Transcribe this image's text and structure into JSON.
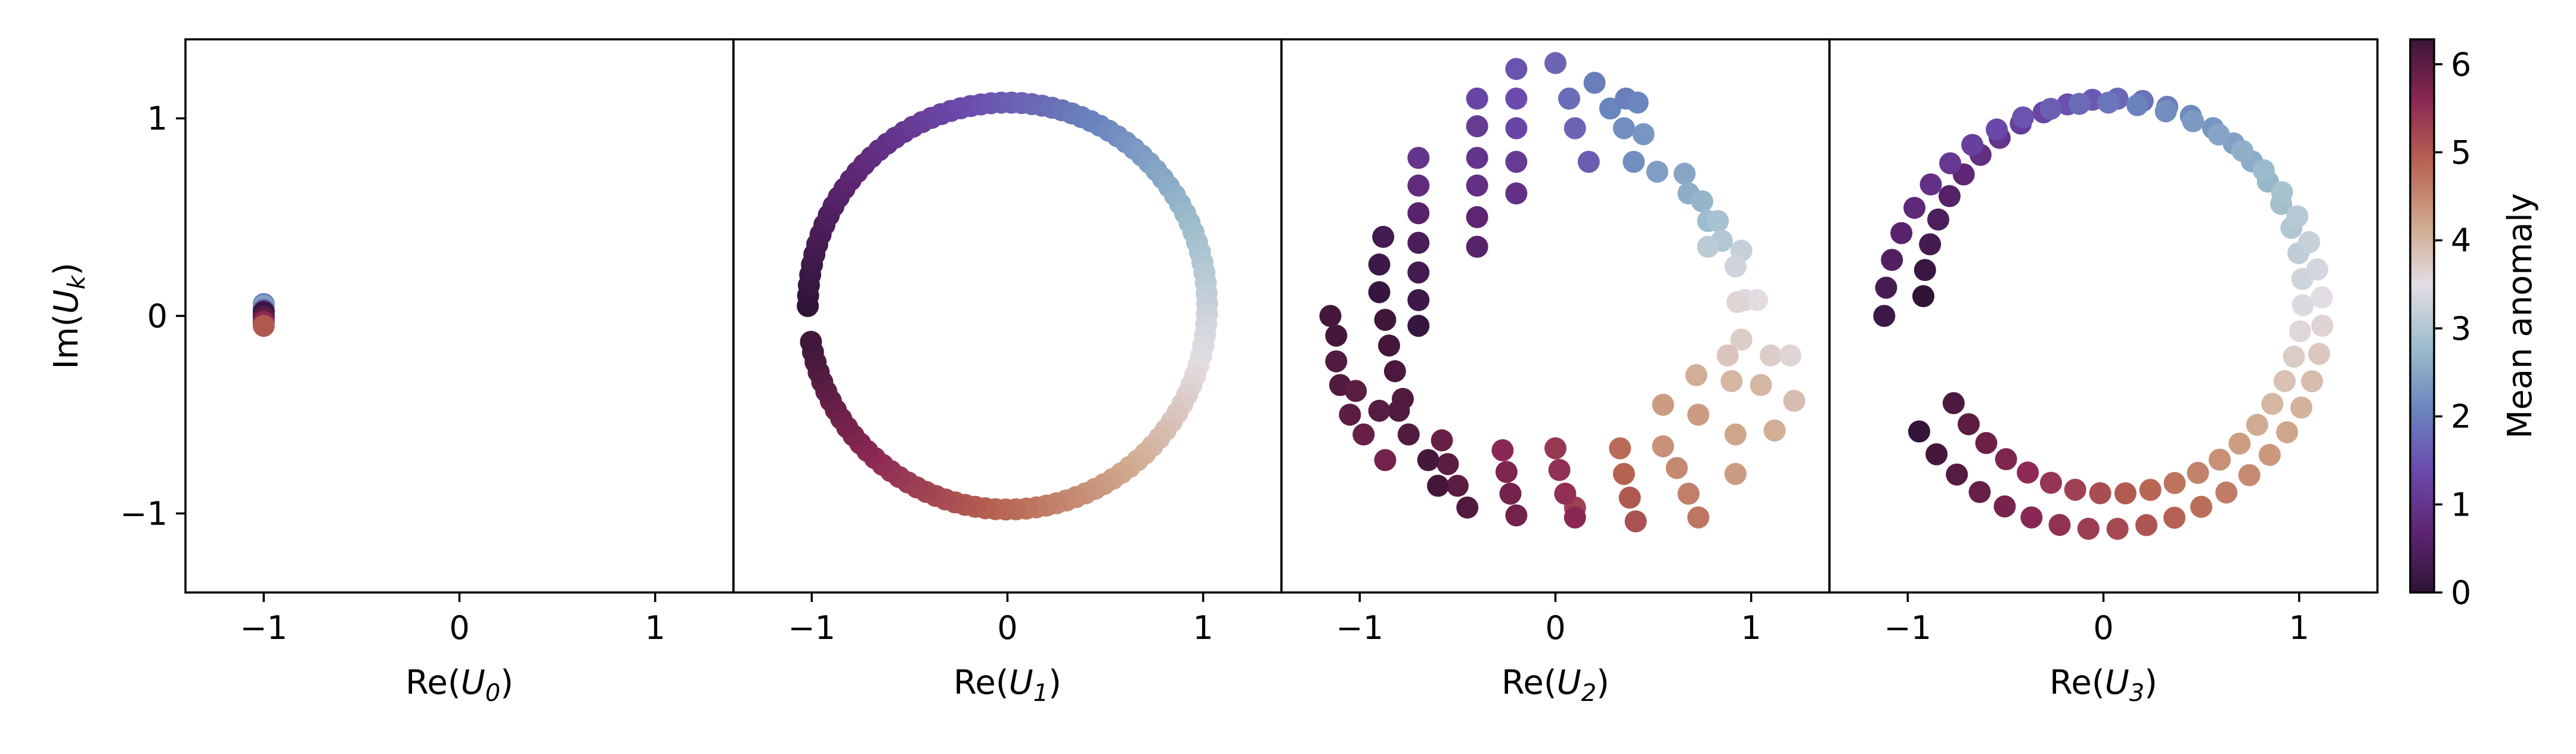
{
  "chart_data": {
    "type": "scatter",
    "colorbar": {
      "label": "Mean anomaly",
      "range": [
        0,
        6.283
      ],
      "ticks": [
        0,
        1,
        2,
        3,
        4,
        5,
        6
      ],
      "colormap": "twilight_shifted",
      "stops": [
        "#2f1436",
        "#5e2573",
        "#6b4bad",
        "#6a86be",
        "#9cbdcc",
        "#e2dde3",
        "#d0a78b",
        "#b76351",
        "#8c2854",
        "#3b1638"
      ]
    },
    "shared_ylabel": "Im(U_k)",
    "panels": [
      {
        "xlabel": "Re(U_0)",
        "xlim": [
          -1.4,
          1.4
        ],
        "ylim": [
          -1.4,
          1.4
        ],
        "xticks": [
          -1,
          0,
          1
        ],
        "yticks": [
          -1,
          0,
          1
        ],
        "points": [
          [
            -1.0,
            0.06,
            2.0
          ],
          [
            -1.0,
            0.05,
            2.4
          ],
          [
            -1.0,
            0.03,
            1.6
          ],
          [
            -1.0,
            0.02,
            0.1
          ],
          [
            -1.0,
            0.0,
            0.3
          ],
          [
            -1.0,
            -0.01,
            6.0
          ],
          [
            -1.0,
            -0.03,
            5.6
          ],
          [
            -1.0,
            -0.05,
            5.0
          ]
        ]
      },
      {
        "xlabel": "Re(U_1)",
        "xlim": [
          -1.4,
          1.4
        ],
        "ylim": [
          -1.4,
          1.4
        ],
        "xticks": [
          -1,
          0,
          1
        ],
        "yticks": [
          -1,
          0,
          1
        ],
        "shape": "circle",
        "cx": 0.0,
        "cy": 0.05,
        "rx": 1.02,
        "ry": 1.03,
        "points": []
      },
      {
        "xlabel": "Re(U_2)",
        "xlim": [
          -1.4,
          1.4
        ],
        "ylim": [
          -1.4,
          1.4
        ],
        "xticks": [
          -1,
          0,
          1
        ],
        "yticks": [
          -1,
          0,
          1
        ],
        "points": [
          [
            -0.7,
            0.8,
            1.0
          ],
          [
            -0.7,
            0.66,
            0.8
          ],
          [
            -0.7,
            0.52,
            0.6
          ],
          [
            -0.7,
            0.37,
            0.4
          ],
          [
            -0.7,
            0.22,
            0.3
          ],
          [
            -0.7,
            0.08,
            0.2
          ],
          [
            -0.7,
            -0.05,
            0.1
          ],
          [
            -0.4,
            1.1,
            1.3
          ],
          [
            -0.4,
            0.96,
            1.1
          ],
          [
            -0.4,
            0.8,
            1.0
          ],
          [
            -0.4,
            0.66,
            0.9
          ],
          [
            -0.4,
            0.5,
            0.7
          ],
          [
            -0.4,
            0.35,
            0.6
          ],
          [
            -0.2,
            1.25,
            1.5
          ],
          [
            -0.2,
            1.1,
            1.4
          ],
          [
            -0.2,
            0.95,
            1.3
          ],
          [
            -0.2,
            0.78,
            1.1
          ],
          [
            -0.2,
            0.62,
            0.9
          ],
          [
            0.0,
            1.28,
            1.7
          ],
          [
            0.07,
            1.1,
            1.8
          ],
          [
            0.1,
            0.95,
            1.7
          ],
          [
            0.17,
            0.78,
            1.6
          ],
          [
            0.2,
            1.18,
            2.0
          ],
          [
            0.28,
            1.05,
            2.1
          ],
          [
            0.35,
            0.95,
            2.2
          ],
          [
            0.4,
            0.78,
            2.2
          ],
          [
            0.36,
            1.1,
            2.0
          ],
          [
            0.42,
            1.08,
            2.1
          ],
          [
            0.45,
            0.92,
            2.3
          ],
          [
            0.52,
            0.73,
            2.4
          ],
          [
            0.66,
            0.72,
            2.5
          ],
          [
            0.68,
            0.62,
            2.6
          ],
          [
            0.75,
            0.58,
            2.7
          ],
          [
            0.78,
            0.48,
            2.8
          ],
          [
            0.83,
            0.48,
            2.9
          ],
          [
            0.85,
            0.38,
            3.0
          ],
          [
            0.78,
            0.35,
            3.1
          ],
          [
            0.95,
            0.33,
            3.2
          ],
          [
            0.92,
            0.25,
            3.3
          ],
          [
            0.97,
            0.08,
            3.4
          ],
          [
            1.03,
            0.08,
            3.5
          ],
          [
            0.93,
            0.07,
            3.6
          ],
          [
            0.95,
            -0.12,
            3.7
          ],
          [
            0.88,
            -0.2,
            3.8
          ],
          [
            1.1,
            -0.2,
            3.7
          ],
          [
            1.2,
            -0.2,
            3.6
          ],
          [
            0.72,
            -0.3,
            4.1
          ],
          [
            0.9,
            -0.33,
            4.0
          ],
          [
            1.05,
            -0.35,
            4.0
          ],
          [
            1.22,
            -0.43,
            3.9
          ],
          [
            0.55,
            -0.45,
            4.3
          ],
          [
            0.73,
            -0.5,
            4.3
          ],
          [
            0.92,
            -0.6,
            4.2
          ],
          [
            1.12,
            -0.58,
            4.1
          ],
          [
            0.55,
            -0.66,
            4.4
          ],
          [
            0.62,
            -0.77,
            4.5
          ],
          [
            0.68,
            -0.9,
            4.6
          ],
          [
            0.73,
            -1.02,
            4.7
          ],
          [
            0.92,
            -0.8,
            4.3
          ],
          [
            0.33,
            -0.67,
            4.8
          ],
          [
            0.35,
            -0.8,
            4.9
          ],
          [
            0.38,
            -0.92,
            5.0
          ],
          [
            0.41,
            -1.04,
            5.1
          ],
          [
            0.1,
            -0.97,
            5.3
          ],
          [
            0.0,
            -0.67,
            5.4
          ],
          [
            0.02,
            -0.78,
            5.5
          ],
          [
            0.05,
            -0.9,
            5.5
          ],
          [
            0.1,
            -1.02,
            5.6
          ],
          [
            -0.27,
            -0.68,
            5.6
          ],
          [
            -0.25,
            -0.79,
            5.7
          ],
          [
            -0.23,
            -0.9,
            5.8
          ],
          [
            -0.2,
            -1.01,
            5.8
          ],
          [
            -0.58,
            -0.63,
            5.9
          ],
          [
            -0.55,
            -0.75,
            6.0
          ],
          [
            -0.5,
            -0.86,
            6.0
          ],
          [
            -0.45,
            -0.97,
            6.1
          ],
          [
            -0.8,
            -0.48,
            6.1
          ],
          [
            -0.75,
            -0.6,
            6.1
          ],
          [
            -0.65,
            -0.73,
            6.2
          ],
          [
            -0.6,
            -0.86,
            6.2
          ],
          [
            -1.15,
            0.0,
            6.2
          ],
          [
            -1.12,
            -0.1,
            6.2
          ],
          [
            -1.12,
            -0.23,
            6.1
          ],
          [
            -1.1,
            -0.35,
            6.1
          ],
          [
            -1.02,
            -0.38,
            6.0
          ],
          [
            -1.05,
            -0.5,
            6.0
          ],
          [
            -0.98,
            -0.6,
            5.9
          ],
          [
            -0.87,
            -0.73,
            5.8
          ],
          [
            -0.88,
            0.4,
            0.3
          ],
          [
            -0.9,
            0.26,
            0.2
          ],
          [
            -0.9,
            0.12,
            0.1
          ],
          [
            -0.87,
            -0.02,
            6.25
          ],
          [
            -0.85,
            -0.15,
            6.2
          ],
          [
            -0.82,
            -0.28,
            6.15
          ],
          [
            -0.78,
            -0.42,
            6.1
          ],
          [
            -0.9,
            -0.48,
            6.05
          ]
        ]
      },
      {
        "xlabel": "Re(U_3)",
        "xlim": [
          -1.4,
          1.4
        ],
        "ylim": [
          -1.4,
          1.4
        ],
        "xticks": [
          -1,
          0,
          1
        ],
        "yticks": [
          -1,
          0,
          1
        ],
        "shape": "double-spiral",
        "points": []
      }
    ]
  }
}
